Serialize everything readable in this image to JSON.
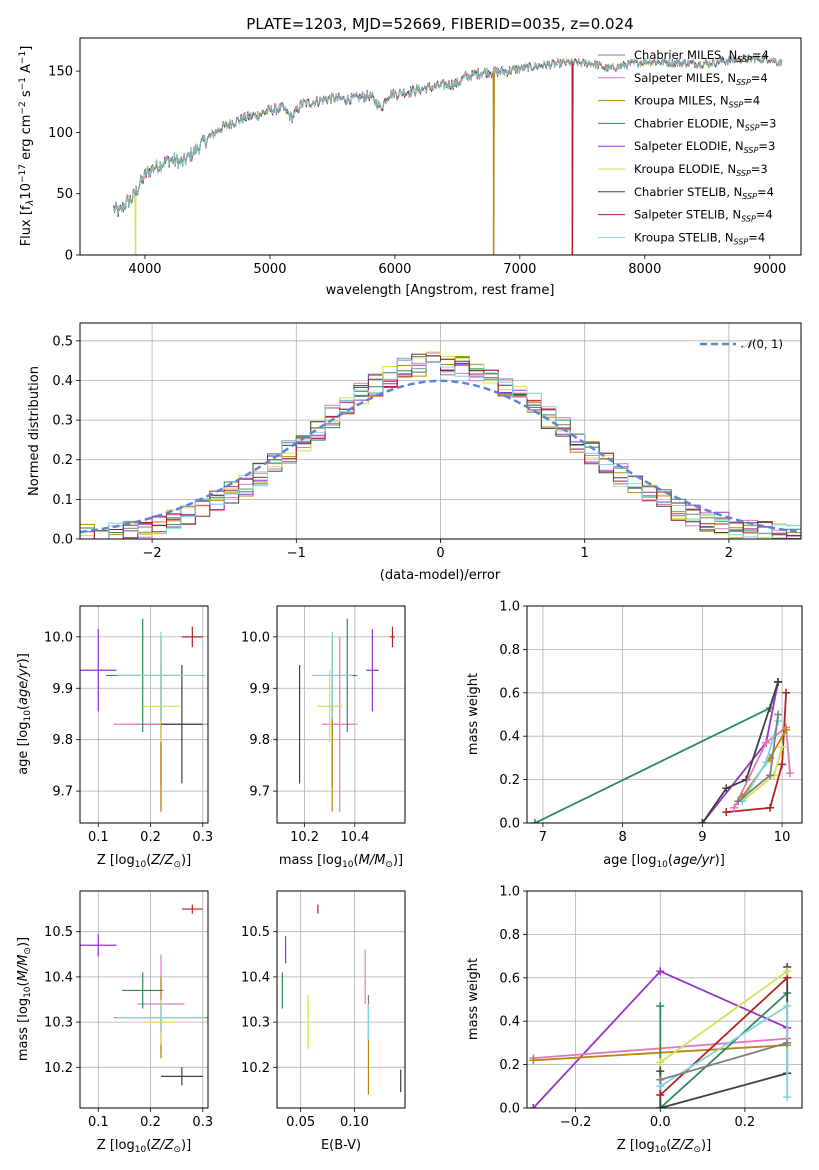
{
  "figure": {
    "title": "PLATE=1203, MJD=52669, FIBERID=0035, z=0.024"
  },
  "chart_data": [
    {
      "id": "spectrum",
      "type": "line",
      "xlabel": "wavelength [Angstrom, rest frame]",
      "ylabel": "Flux [f$_\\lambda$10$^{-17}$ erg cm$^{-2}$ s$^{-1}$ A$^{-1}$]",
      "ylabel_parts": {
        "pre": "Flux [f",
        "s1": "λ",
        "m1": "10",
        "p1": "−17",
        "m2": " erg cm",
        "p2": "−2",
        "m3": " s",
        "p3": "−1",
        "m4": " A",
        "p4": "−1",
        "post": "]"
      },
      "xlim": [
        3480,
        9250
      ],
      "ylim": [
        0,
        177
      ],
      "xticks": [
        4000,
        5000,
        6000,
        7000,
        8000,
        9000
      ],
      "yticks": [
        0,
        50,
        100,
        150
      ],
      "grid": false,
      "legend_position": "right",
      "continuum": [
        [
          3750,
          38
        ],
        [
          3800,
          35
        ],
        [
          3850,
          43
        ],
        [
          3900,
          46
        ],
        [
          3950,
          56
        ],
        [
          4000,
          65
        ],
        [
          4050,
          70
        ],
        [
          4100,
          73
        ],
        [
          4200,
          78
        ],
        [
          4300,
          75
        ],
        [
          4400,
          85
        ],
        [
          4500,
          95
        ],
        [
          4600,
          103
        ],
        [
          4700,
          108
        ],
        [
          4800,
          112
        ],
        [
          4900,
          114
        ],
        [
          5000,
          118
        ],
        [
          5100,
          120
        ],
        [
          5175,
          112
        ],
        [
          5250,
          123
        ],
        [
          5400,
          126
        ],
        [
          5500,
          128
        ],
        [
          5600,
          127
        ],
        [
          5700,
          128
        ],
        [
          5800,
          130
        ],
        [
          5890,
          120
        ],
        [
          5950,
          131
        ],
        [
          6100,
          133
        ],
        [
          6300,
          137
        ],
        [
          6500,
          140
        ],
        [
          6563,
          145
        ],
        [
          6700,
          149
        ],
        [
          6900,
          150
        ],
        [
          7000,
          152
        ],
        [
          7200,
          155
        ],
        [
          7400,
          157
        ],
        [
          7600,
          156
        ],
        [
          7700,
          152
        ],
        [
          7850,
          155
        ],
        [
          8000,
          158
        ],
        [
          8200,
          157
        ],
        [
          8500,
          156
        ],
        [
          8600,
          158
        ],
        [
          8800,
          160
        ],
        [
          9000,
          160
        ],
        [
          9100,
          156
        ]
      ],
      "dropouts": [
        {
          "series": "Kroupa ELODIE",
          "x": 3925
        },
        {
          "series": "Kroupa MILES",
          "x": 6790
        },
        {
          "series": "Salpeter STELIB",
          "x": 7420
        }
      ],
      "series": [
        {
          "name": "Chabrier MILES",
          "nssp": "4",
          "color": "#7f7f7f"
        },
        {
          "name": "Salpeter MILES",
          "nssp": "4",
          "color": "#e377c2"
        },
        {
          "name": "Kroupa MILES",
          "nssp": "4",
          "color": "#b8860b"
        },
        {
          "name": "Chabrier ELODIE",
          "nssp": "3",
          "color": "#2e8b57"
        },
        {
          "name": "Salpeter ELODIE",
          "nssp": "3",
          "color": "#9932cc"
        },
        {
          "name": "Kroupa ELODIE",
          "nssp": "3",
          "color": "#d4e157"
        },
        {
          "name": "Chabrier STELIB",
          "nssp": "4",
          "color": "#404040"
        },
        {
          "name": "Salpeter STELIB",
          "nssp": "4",
          "color": "#b22222"
        },
        {
          "name": "Kroupa STELIB",
          "nssp": "4",
          "color": "#80d4e0"
        }
      ],
      "legend_sub": "SSP"
    },
    {
      "id": "residuals",
      "type": "histogram",
      "xlabel": "(data-model)/error",
      "ylabel": "Normed distribution",
      "xlim": [
        -2.5,
        2.5
      ],
      "ylim": [
        0,
        0.545
      ],
      "xticks": [
        -2,
        -1,
        0,
        1,
        2
      ],
      "yticks": [
        0.0,
        0.1,
        0.2,
        0.3,
        0.4,
        0.5
      ],
      "grid": true,
      "bin_width": 0.1,
      "bin_start": -2.5,
      "reference_curve": {
        "name": "N(0,1)",
        "label_main": "𝒩",
        "label_args": "(0, 1)",
        "color": "#5b84d8",
        "style": "dashed"
      },
      "legend_position": "top-right"
    },
    {
      "id": "age_vs_Z",
      "type": "errorbar",
      "xlabel": "Z [log$_{10}$(Z/Z$_\\odot$)]",
      "ylabel": "age  [log$_{10}$(age/yr)]",
      "xlim": [
        0.065,
        0.31
      ],
      "ylim": [
        9.638,
        10.06
      ],
      "xticks": [
        0.1,
        0.2,
        0.3
      ],
      "yticks": [
        9.7,
        9.8,
        9.9,
        10.0
      ],
      "grid": true,
      "points": [
        {
          "series": "Chabrier MILES",
          "x": 0.22,
          "y": 9.83,
          "xerr": 0.05,
          "yerr": 0.12
        },
        {
          "series": "Salpeter MILES",
          "x": 0.22,
          "y": 9.83,
          "xerr": 0.09,
          "yerr": 0.17
        },
        {
          "series": "Kroupa MILES",
          "x": 0.22,
          "y": 9.83,
          "xerr": 0.0,
          "yerr": 0.17
        },
        {
          "series": "Chabrier ELODIE",
          "x": 0.185,
          "y": 9.925,
          "xerr": 0.07,
          "yerr": 0.11
        },
        {
          "series": "Salpeter ELODIE",
          "x": 0.1,
          "y": 9.935,
          "xerr": 0.035,
          "yerr": 0.08
        },
        {
          "series": "Kroupa ELODIE",
          "x": 0.22,
          "y": 9.865,
          "xerr": 0.035,
          "yerr": 0.07
        },
        {
          "series": "Chabrier STELIB",
          "x": 0.26,
          "y": 9.83,
          "xerr": 0.04,
          "yerr": 0.115
        },
        {
          "series": "Salpeter STELIB",
          "x": 0.28,
          "y": 10.0,
          "xerr": 0.02,
          "yerr": 0.02
        },
        {
          "series": "Kroupa STELIB",
          "x": 0.22,
          "y": 9.925,
          "xerr": 0.085,
          "yerr": 0.085
        }
      ]
    },
    {
      "id": "age_vs_mass",
      "type": "errorbar",
      "xlabel": "mass [log$_{10}$(M/M$_\\odot$)]",
      "ylabel": "",
      "xlim": [
        10.09,
        10.6
      ],
      "ylim": [
        9.638,
        10.06
      ],
      "xticks": [
        10.2,
        10.4
      ],
      "yticks": [
        9.7,
        9.8,
        9.9,
        10.0
      ],
      "grid": true,
      "points": [
        {
          "series": "Chabrier MILES",
          "x": 10.31,
          "y": 9.83,
          "xerr": 0.0,
          "yerr": 0.12
        },
        {
          "series": "Salpeter MILES",
          "x": 10.34,
          "y": 9.83,
          "xerr": 0.07,
          "yerr": 0.17
        },
        {
          "series": "Kroupa MILES",
          "x": 10.31,
          "y": 9.83,
          "xerr": 0.0,
          "yerr": 0.17
        },
        {
          "series": "Chabrier ELODIE",
          "x": 10.37,
          "y": 9.925,
          "xerr": 0.04,
          "yerr": 0.11
        },
        {
          "series": "Salpeter ELODIE",
          "x": 10.47,
          "y": 9.935,
          "xerr": 0.025,
          "yerr": 0.08
        },
        {
          "series": "Kroupa ELODIE",
          "x": 10.3,
          "y": 9.865,
          "xerr": 0.05,
          "yerr": 0.07
        },
        {
          "series": "Chabrier STELIB",
          "x": 10.18,
          "y": 9.83,
          "xerr": 0.0,
          "yerr": 0.115
        },
        {
          "series": "Salpeter STELIB",
          "x": 10.55,
          "y": 10.0,
          "xerr": 0.01,
          "yerr": 0.02
        },
        {
          "series": "Kroupa STELIB",
          "x": 10.31,
          "y": 9.925,
          "xerr": 0.08,
          "yerr": 0.085
        }
      ]
    },
    {
      "id": "weight_vs_age",
      "type": "line",
      "xlabel": "age  [log$_{10}$(age/yr)]",
      "ylabel": "mass weight",
      "xlim": [
        6.8,
        10.25
      ],
      "ylim": [
        0,
        1.0
      ],
      "xticks": [
        7,
        8,
        9,
        10
      ],
      "yticks": [
        0.0,
        0.2,
        0.4,
        0.6,
        0.8,
        1.0
      ],
      "grid": true,
      "lines": [
        {
          "series": "Chabrier ELODIE",
          "points": [
            [
              6.9,
              0.0
            ],
            [
              9.85,
              0.53
            ],
            [
              9.95,
              0.65
            ]
          ]
        },
        {
          "series": "Salpeter ELODIE",
          "points": [
            [
              9.0,
              0.0
            ],
            [
              9.8,
              0.37
            ],
            [
              9.95,
              0.65
            ]
          ]
        },
        {
          "series": "Chabrier STELIB",
          "points": [
            [
              9.0,
              0.0
            ],
            [
              9.3,
              0.16
            ],
            [
              9.55,
              0.2
            ],
            [
              9.95,
              0.65
            ]
          ]
        },
        {
          "series": "Salpeter STELIB",
          "points": [
            [
              9.3,
              0.05
            ],
            [
              9.85,
              0.07
            ],
            [
              10.0,
              0.27
            ],
            [
              10.05,
              0.6
            ]
          ]
        },
        {
          "series": "Salpeter MILES",
          "points": [
            [
              9.4,
              0.07
            ],
            [
              9.8,
              0.37
            ],
            [
              10.05,
              0.44
            ],
            [
              10.1,
              0.23
            ]
          ]
        },
        {
          "series": "Kroupa MILES",
          "points": [
            [
              9.5,
              0.12
            ],
            [
              9.85,
              0.3
            ],
            [
              10.05,
              0.43
            ]
          ]
        },
        {
          "series": "Kroupa ELODIE",
          "points": [
            [
              9.5,
              0.1
            ],
            [
              9.9,
              0.22
            ],
            [
              10.0,
              0.35
            ]
          ]
        },
        {
          "series": "Kroupa STELIB",
          "points": [
            [
              9.5,
              0.1
            ],
            [
              9.8,
              0.28
            ],
            [
              9.95,
              0.47
            ]
          ]
        },
        {
          "series": "Chabrier MILES",
          "points": [
            [
              9.45,
              0.1
            ],
            [
              9.85,
              0.22
            ],
            [
              9.95,
              0.5
            ]
          ]
        }
      ]
    },
    {
      "id": "mass_vs_Z",
      "type": "errorbar",
      "xlabel": "Z [log$_{10}$(Z/Z$_\\odot$)]",
      "ylabel": "mass [log$_{10}$(M/M$_\\odot$)]",
      "xlim": [
        0.065,
        0.31
      ],
      "ylim": [
        10.11,
        10.59
      ],
      "xticks": [
        0.1,
        0.2,
        0.3
      ],
      "yticks": [
        10.2,
        10.3,
        10.4,
        10.5
      ],
      "grid": true,
      "points": [
        {
          "series": "Chabrier MILES",
          "x": 0.22,
          "y": 10.31,
          "xerr": 0.085,
          "yerr": 0.0
        },
        {
          "series": "Salpeter MILES",
          "x": 0.22,
          "y": 10.34,
          "xerr": 0.045,
          "yerr": 0.11
        },
        {
          "series": "Kroupa MILES",
          "x": 0.22,
          "y": 10.31,
          "xerr": 0.09,
          "yerr": 0.09
        },
        {
          "series": "Chabrier ELODIE",
          "x": 0.185,
          "y": 10.37,
          "xerr": 0.04,
          "yerr": 0.04
        },
        {
          "series": "Salpeter ELODIE",
          "x": 0.1,
          "y": 10.47,
          "xerr": 0.035,
          "yerr": 0.025
        },
        {
          "series": "Kroupa ELODIE",
          "x": 0.22,
          "y": 10.3,
          "xerr": 0.03,
          "yerr": 0.05
        },
        {
          "series": "Chabrier STELIB",
          "x": 0.26,
          "y": 10.18,
          "xerr": 0.04,
          "yerr": 0.02
        },
        {
          "series": "Salpeter STELIB",
          "x": 0.28,
          "y": 10.55,
          "xerr": 0.02,
          "yerr": 0.01
        },
        {
          "series": "Kroupa STELIB",
          "x": 0.22,
          "y": 10.31,
          "xerr": 0.085,
          "yerr": 0.03
        }
      ]
    },
    {
      "id": "mass_vs_ebv",
      "type": "errorbar",
      "xlabel": "E(B-V)",
      "ylabel": "",
      "xlim": [
        0.028,
        0.147
      ],
      "ylim": [
        10.11,
        10.59
      ],
      "xticks": [
        0.05,
        0.1
      ],
      "yticks": [
        10.2,
        10.3,
        10.4,
        10.5
      ],
      "grid": true,
      "points": [
        {
          "series": "Chabrier MILES",
          "x": 0.113,
          "y": 10.31,
          "xerr": 0.0,
          "yerr": 0.05
        },
        {
          "series": "Salpeter MILES",
          "x": 0.11,
          "y": 10.4,
          "xerr": 0.0,
          "yerr": 0.06
        },
        {
          "series": "Kroupa MILES",
          "x": 0.113,
          "y": 10.21,
          "xerr": 0.0,
          "yerr": 0.07
        },
        {
          "series": "Chabrier ELODIE",
          "x": 0.033,
          "y": 10.37,
          "xerr": 0.0,
          "yerr": 0.04
        },
        {
          "series": "Salpeter ELODIE",
          "x": 0.036,
          "y": 10.46,
          "xerr": 0.0,
          "yerr": 0.03
        },
        {
          "series": "Kroupa ELODIE",
          "x": 0.057,
          "y": 10.3,
          "xerr": 0.0,
          "yerr": 0.06
        },
        {
          "series": "Chabrier STELIB",
          "x": 0.143,
          "y": 10.17,
          "xerr": 0.0,
          "yerr": 0.025
        },
        {
          "series": "Salpeter STELIB",
          "x": 0.066,
          "y": 10.55,
          "xerr": 0.0,
          "yerr": 0.01
        },
        {
          "series": "Kroupa STELIB",
          "x": 0.113,
          "y": 10.3,
          "xerr": 0.0,
          "yerr": 0.04
        }
      ]
    },
    {
      "id": "weight_vs_Z",
      "type": "line",
      "xlabel": "Z [log$_{10}$(Z/Z$_\\odot$)]",
      "ylabel": "mass weight",
      "xlim": [
        -0.315,
        0.335
      ],
      "ylim": [
        0,
        1.0
      ],
      "xticks": [
        -0.2,
        0.0,
        0.2
      ],
      "yticks": [
        0.0,
        0.2,
        0.4,
        0.6,
        0.8,
        1.0
      ],
      "grid": true,
      "lines": [
        {
          "series": "Salpeter ELODIE",
          "points": [
            [
              -0.3,
              0.0
            ],
            [
              0.0,
              0.63
            ],
            [
              0.3,
              0.37
            ]
          ]
        },
        {
          "series": "Salpeter MILES",
          "points": [
            [
              -0.3,
              0.23
            ],
            [
              0.3,
              0.32
            ]
          ]
        },
        {
          "series": "Kroupa MILES",
          "points": [
            [
              -0.3,
              0.22
            ],
            [
              0.3,
              0.29
            ]
          ]
        },
        {
          "series": "Chabrier ELODIE",
          "points": [
            [
              0.0,
              0.47
            ],
            [
              0.0,
              0.0
            ],
            [
              0.3,
              0.53
            ]
          ]
        },
        {
          "series": "Chabrier STELIB",
          "points": [
            [
              0.0,
              0.17
            ],
            [
              0.0,
              0.0
            ],
            [
              0.3,
              0.16
            ],
            [
              0.3,
              0.65
            ]
          ]
        },
        {
          "series": "Salpeter STELIB",
          "points": [
            [
              0.0,
              0.06
            ],
            [
              0.3,
              0.6
            ]
          ]
        },
        {
          "series": "Kroupa ELODIE",
          "points": [
            [
              0.0,
              0.21
            ],
            [
              0.3,
              0.63
            ]
          ]
        },
        {
          "series": "Kroupa STELIB",
          "points": [
            [
              0.0,
              0.1
            ],
            [
              0.3,
              0.47
            ],
            [
              0.3,
              0.05
            ]
          ]
        },
        {
          "series": "Chabrier MILES",
          "points": [
            [
              0.0,
              0.13
            ],
            [
              0.3,
              0.3
            ]
          ]
        }
      ]
    }
  ],
  "labels": {
    "spectrum": {
      "xlabel": "wavelength [Angstrom, rest frame]"
    },
    "residuals": {
      "xlabel": "(data-model)/error",
      "ylabel": "Normed distribution"
    },
    "age_vs_Z": {
      "x_pre": "Z [log",
      "x_sub": "10",
      "x_mid": "(",
      "x_it": "Z/Z",
      "x_sub2": "⊙",
      "x_post": ")]",
      "y_pre": "age  [log",
      "y_sub": "10",
      "y_mid": "(",
      "y_it": "age/yr",
      "y_post": ")]"
    },
    "age_vs_mass": {
      "x_pre": "mass [log",
      "x_sub": "10",
      "x_mid": "(",
      "x_it": "M/M",
      "x_sub2": "⊙",
      "x_post": ")]"
    },
    "weight_vs_age": {
      "x_pre": "age  [log",
      "x_sub": "10",
      "x_mid": "(",
      "x_it": "age/yr",
      "x_post": ")]",
      "ylabel": "mass weight"
    },
    "mass_vs_Z": {
      "x_pre": "Z [log",
      "x_sub": "10",
      "x_mid": "(",
      "x_it": "Z/Z",
      "x_sub2": "⊙",
      "x_post": ")]",
      "y_pre": "mass [log",
      "y_sub": "10",
      "y_mid": "(",
      "y_it": "M/M",
      "y_sub2": "⊙",
      "y_post": ")]"
    },
    "mass_vs_ebv": {
      "xlabel": "E(B-V)"
    },
    "weight_vs_Z": {
      "x_pre": "Z [log",
      "x_sub": "10",
      "x_mid": "(",
      "x_it": "Z/Z",
      "x_sub2": "⊙",
      "x_post": ")]",
      "ylabel": "mass weight"
    }
  }
}
